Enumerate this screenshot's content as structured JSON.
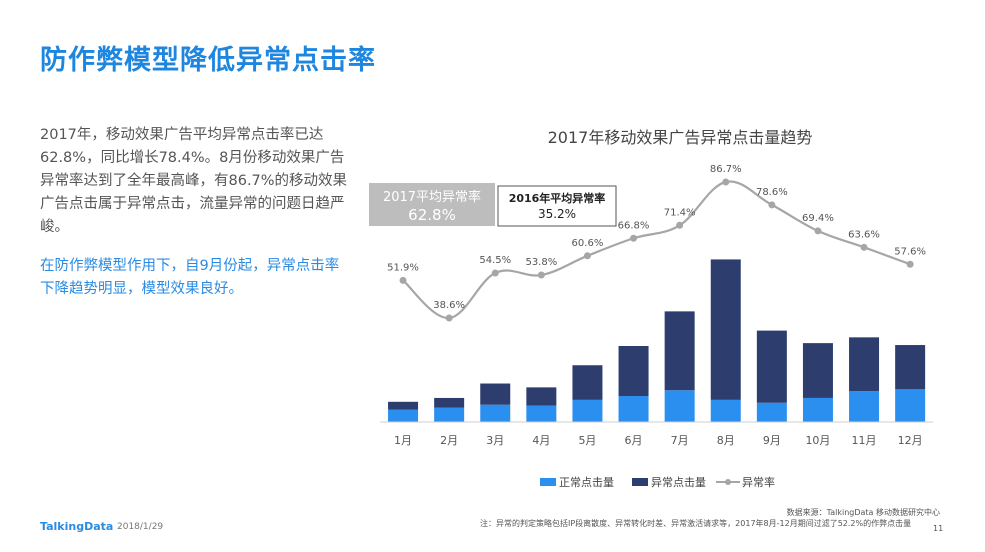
{
  "slide": {
    "title": "防作弊模型降低异常点击率",
    "paragraph1": "2017年，移动效果广告平均异常点击率已达62.8%，同比增长78.4%。8月份移动效果广告异常率达到了全年最高峰，有86.7%的移动效果广告点击属于异常点击，流量异常的问题日趋严峻。",
    "paragraph2": "在防作弊模型作用下，自9月份起，异常点击率下降趋势明显，模型效果良好。",
    "footer_logo": "TalkingData",
    "footer_date": "2018/1/29",
    "source": "数据来源：TalkingData 移动数据研究中心",
    "note": "注：异常的判定策略包括IP段离散度、异常转化时差、异常激活请求等，2017年8月-12月期间过滤了52.2%的作弊点击量",
    "page_number": "11"
  },
  "chart_data": {
    "type": "bar",
    "title": "2017年移动效果广告异常点击量趋势",
    "categories": [
      "1月",
      "2月",
      "3月",
      "4月",
      "5月",
      "6月",
      "7月",
      "8月",
      "9月",
      "10月",
      "11月",
      "12月"
    ],
    "series": [
      {
        "name": "正常点击量",
        "kind": "bar-stacked",
        "color": "#2b8ff0",
        "values": [
          13,
          15,
          18,
          17,
          23,
          27,
          33,
          23,
          20,
          25,
          32,
          34
        ]
      },
      {
        "name": "异常点击量",
        "kind": "bar-stacked",
        "color": "#2d3e6e",
        "values": [
          8,
          10,
          22,
          19,
          36,
          52,
          82,
          146,
          75,
          57,
          56,
          46
        ]
      },
      {
        "name": "异常率",
        "kind": "line",
        "color": "#a6a6a6",
        "values": [
          51.9,
          38.6,
          54.5,
          53.8,
          60.6,
          66.8,
          71.4,
          86.7,
          78.6,
          69.4,
          63.6,
          57.6
        ],
        "labels": [
          "51.9%",
          "38.6%",
          "54.5%",
          "53.8%",
          "60.6%",
          "66.8%",
          "71.4%",
          "86.7%",
          "78.6%",
          "69.4%",
          "63.6%",
          "57.6%"
        ]
      }
    ],
    "annotations": [
      {
        "label": "2017平均异常率",
        "value": "62.8%"
      },
      {
        "label": "2016年平均异常率",
        "value": "35.2%"
      }
    ],
    "legend": {
      "position": "bottom",
      "items": [
        "正常点击量",
        "异常点击量",
        "异常率"
      ]
    },
    "line_ylim": [
      30,
      95
    ],
    "bar_ylim": [
      0,
      175
    ]
  }
}
